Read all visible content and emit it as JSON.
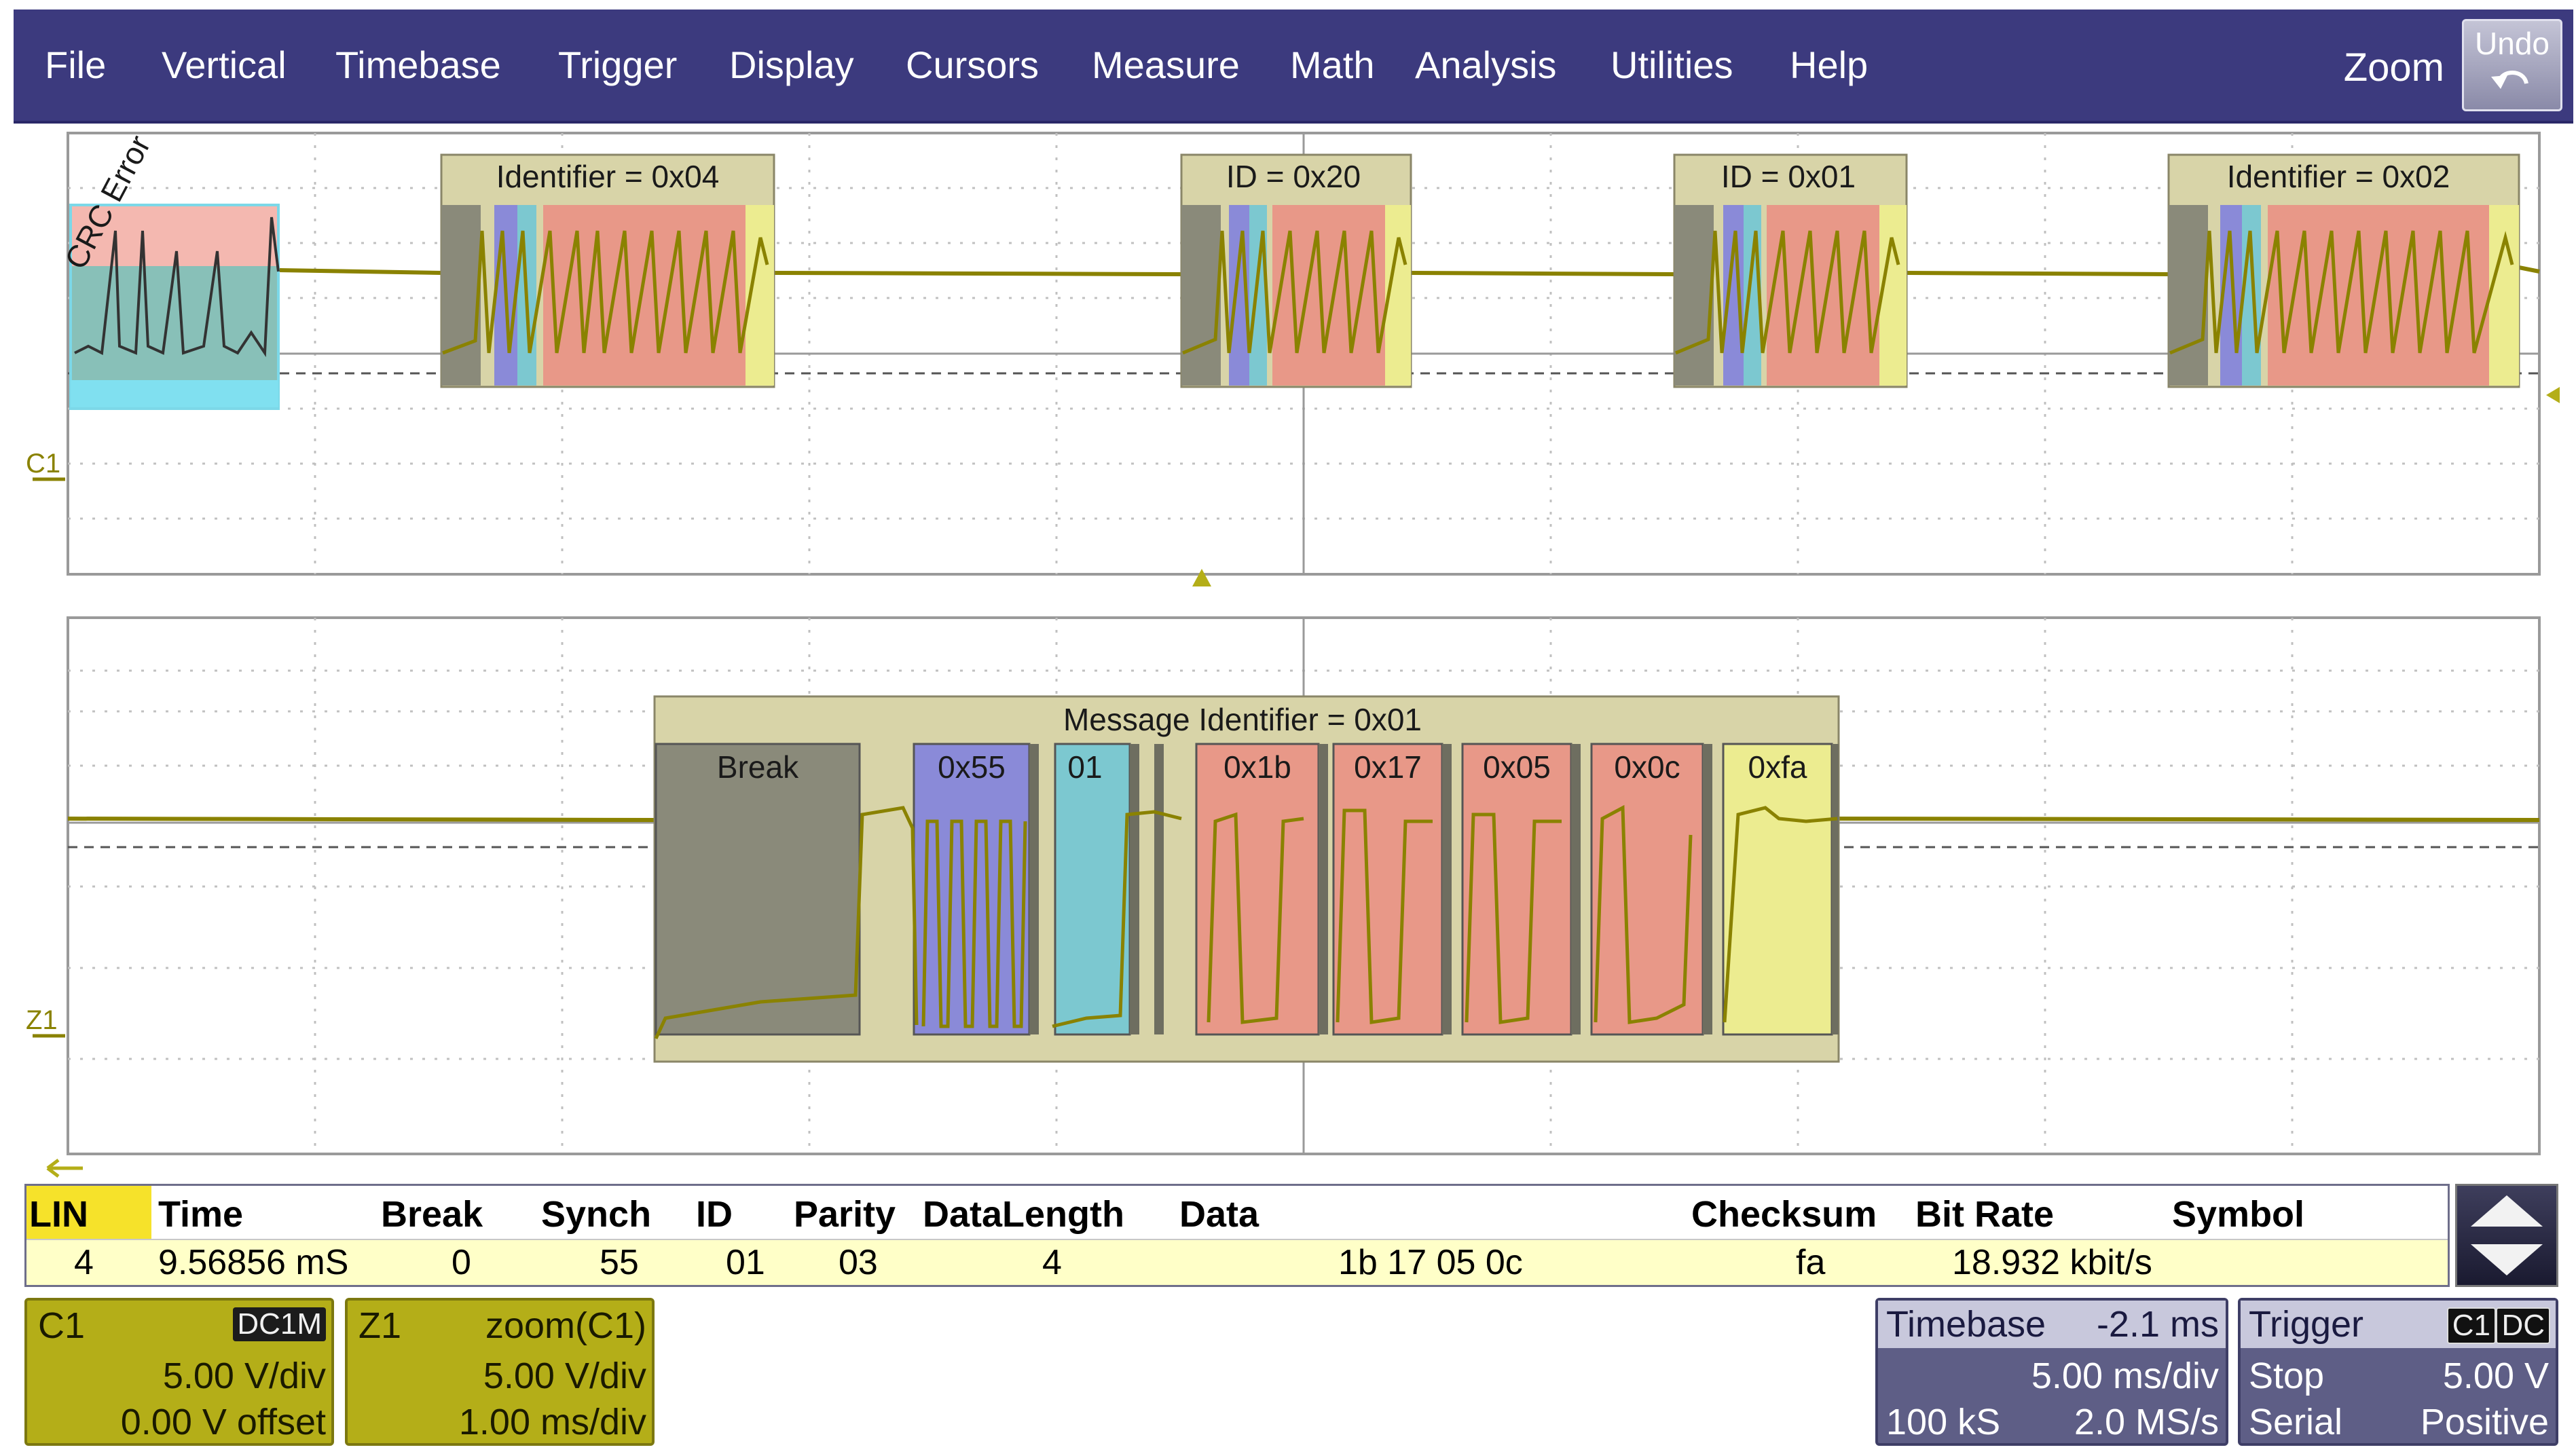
{
  "menu": {
    "items": [
      "File",
      "Vertical",
      "Timebase",
      "Trigger",
      "Display",
      "Cursors",
      "Measure",
      "Math",
      "Analysis",
      "Utilities",
      "Help"
    ],
    "zoom_label": "Zoom",
    "undo_label": "Undo"
  },
  "upper_trace": {
    "channel_label": "C1",
    "error_label": "CRC Error",
    "frames": [
      "Identifier = 0x04",
      "ID = 0x20",
      "ID = 0x01",
      "Identifier = 0x02"
    ]
  },
  "zoom_trace": {
    "channel_label": "Z1",
    "message_label": "Message Identifier = 0x01",
    "fields": [
      "Break",
      "0x55",
      "01",
      "0x1b",
      "0x17",
      "0x05",
      "0x0c",
      "0xfa"
    ]
  },
  "table": {
    "headers": [
      "LIN",
      "Time",
      "Break",
      "Synch",
      "ID",
      "Parity",
      "DataLength",
      "Data",
      "Checksum",
      "Bit Rate",
      "Symbol"
    ],
    "row": [
      "4",
      "9.56856 mS",
      "0",
      "55",
      "01",
      "03",
      "4",
      "1b 17 05 0c",
      "fa",
      "18.932 kbit/s",
      ""
    ]
  },
  "c1": {
    "name": "C1",
    "coupling": "DC1M",
    "scale": "5.00 V/div",
    "offset": "0.00 V offset"
  },
  "z1": {
    "name": "Z1",
    "source": "zoom(C1)",
    "scale": "5.00 V/div",
    "timebase": "1.00 ms/div"
  },
  "timebase": {
    "label": "Timebase",
    "delay": "-2.1 ms",
    "scale": "5.00 ms/div",
    "samples": "100 kS",
    "rate": "2.0 MS/s"
  },
  "trigger": {
    "label": "Trigger",
    "source": "C1",
    "coupling": "DC",
    "mode": "Stop",
    "level": "5.00 V",
    "type": "Serial",
    "slope": "Positive"
  },
  "colors": {
    "menu_bg": "#3c3a7e",
    "trace": "#8a8200",
    "frame_bg": "#d8d4a8",
    "break": "#8a8a7a",
    "sync": "#8a8ad8",
    "id": "#7cc8d0",
    "data": "#e89888",
    "checksum": "#ecec90"
  }
}
